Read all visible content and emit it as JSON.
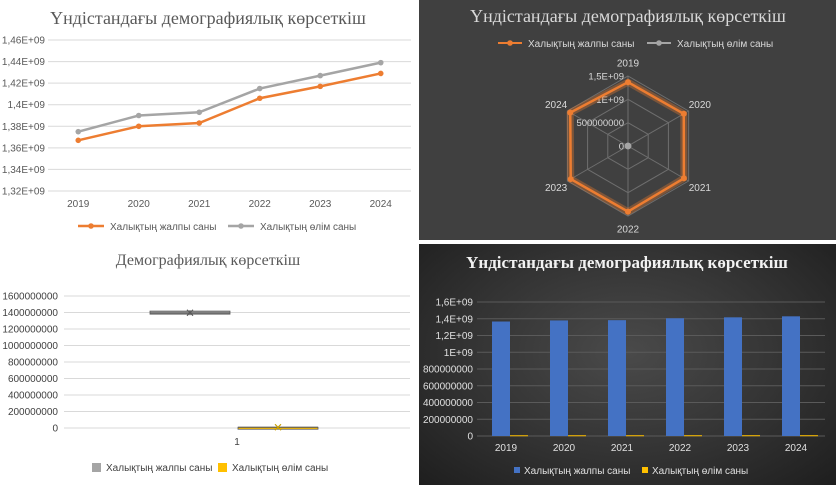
{
  "colors": {
    "orange": "#ED7D31",
    "gray": "#A5A5A5",
    "blue": "#4472C4",
    "yellow": "#FFC000",
    "dark_bg": "#404040"
  },
  "chart_data": [
    {
      "type": "line",
      "title": "Үндістандағы демографиялық көрсеткіш",
      "categories": [
        "2019",
        "2020",
        "2021",
        "2022",
        "2023",
        "2024"
      ],
      "series": [
        {
          "name": "Халықтың жалпы саны",
          "values": [
            1367000000,
            1380000000,
            1383000000,
            1406000000,
            1417000000,
            1429000000
          ]
        },
        {
          "name": "Халықтың өлім саны",
          "values": [
            1375000000,
            1390000000,
            1393000000,
            1415000000,
            1427000000,
            1439000000
          ]
        }
      ],
      "ylim": [
        1320000000,
        1460000000
      ],
      "yticks": [
        1320000000,
        1340000000,
        1360000000,
        1380000000,
        1400000000,
        1420000000,
        1440000000,
        1460000000
      ],
      "ytick_labels": [
        "1,32E+09",
        "1,34E+09",
        "1,36E+09",
        "1,38E+09",
        "1,4E+09",
        "1,42E+09",
        "1,44E+09",
        "1,46E+09"
      ],
      "grid": true,
      "legend": "bottom"
    },
    {
      "type": "radar",
      "title": "Үндістандағы демографиялық көрсеткіш",
      "categories": [
        "2019",
        "2020",
        "2021",
        "2022",
        "2023",
        "2024"
      ],
      "series": [
        {
          "name": "Халықтың жалпы саны",
          "values": [
            1367000000,
            1380000000,
            1383000000,
            1406000000,
            1417000000,
            1429000000
          ]
        },
        {
          "name": "Халықтың өлім саны",
          "values": [
            9000000,
            9100000,
            9200000,
            9300000,
            9400000,
            9500000
          ]
        }
      ],
      "rmax": 1500000000,
      "rticks": [
        0,
        500000000,
        1000000000,
        1500000000
      ],
      "rtick_labels": [
        "0",
        "500000000",
        "1E+09",
        "1,5E+09"
      ],
      "legend": "top"
    },
    {
      "type": "box",
      "title": "Демографиялық көрсеткіш",
      "categories": [
        "1"
      ],
      "series": [
        {
          "name": "Халықтың жалпы саны",
          "min": 1367000000,
          "q1": 1380000000,
          "median": 1394500000,
          "q3": 1417000000,
          "max": 1429000000,
          "mean": 1397000000
        },
        {
          "name": "Халықтың өлім саны",
          "min": 9000000,
          "q1": 9100000,
          "median": 9250000,
          "q3": 9400000,
          "max": 9500000,
          "mean": 9250000
        }
      ],
      "ylim": [
        0,
        1600000000
      ],
      "yticks": [
        0,
        200000000,
        400000000,
        600000000,
        800000000,
        1000000000,
        1200000000,
        1400000000,
        1600000000
      ],
      "ytick_labels": [
        "0",
        "200000000",
        "400000000",
        "600000000",
        "800000000",
        "1000000000",
        "1200000000",
        "1400000000",
        "1600000000"
      ],
      "grid": true,
      "legend": "bottom"
    },
    {
      "type": "bar",
      "title": "Үндістандағы демографиялық көрсеткіш",
      "categories": [
        "2019",
        "2020",
        "2021",
        "2022",
        "2023",
        "2024"
      ],
      "series": [
        {
          "name": "Халықтың жалпы саны",
          "values": [
            1367000000,
            1380000000,
            1383000000,
            1406000000,
            1417000000,
            1429000000
          ]
        },
        {
          "name": "Халықтың өлім саны",
          "values": [
            9000000,
            9100000,
            9200000,
            9300000,
            9400000,
            9500000
          ]
        }
      ],
      "ylim": [
        0,
        1600000000
      ],
      "yticks": [
        0,
        200000000,
        400000000,
        600000000,
        800000000,
        1000000000,
        1200000000,
        1400000000,
        1600000000
      ],
      "ytick_labels": [
        "0",
        "200000000",
        "400000000",
        "600000000",
        "800000000",
        "1E+09",
        "1,2E+09",
        "1,4E+09",
        "1,6E+09"
      ],
      "grid": true,
      "legend": "bottom"
    }
  ]
}
